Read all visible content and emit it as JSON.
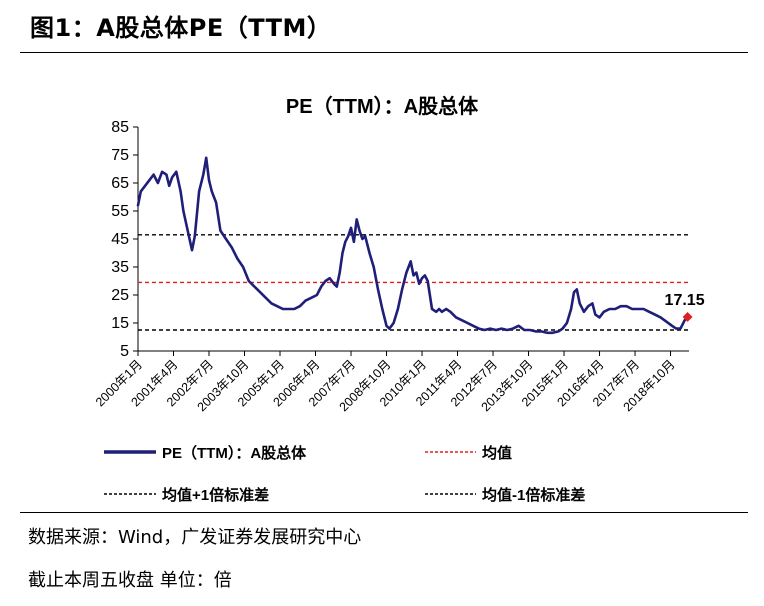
{
  "figure": {
    "title": "图1：A股总体PE（TTM）",
    "source": "数据来源：Wind，广发证券发展研究中心",
    "note": "截止本周五收盘 单位：倍"
  },
  "chart_data": {
    "type": "line",
    "title": "PE（TTM）：A股总体",
    "xlabel": "",
    "ylabel": "",
    "ylim": [
      5,
      85
    ],
    "yticks": [
      5,
      15,
      25,
      35,
      45,
      55,
      65,
      75,
      85
    ],
    "xlim": [
      2000.0,
      2019.4
    ],
    "xticks": [
      {
        "label": "2000年1月",
        "x": 2000.0
      },
      {
        "label": "2001年4月",
        "x": 2001.25
      },
      {
        "label": "2002年7月",
        "x": 2002.5
      },
      {
        "label": "2003年10月",
        "x": 2003.75
      },
      {
        "label": "2005年1月",
        "x": 2005.0
      },
      {
        "label": "2006年4月",
        "x": 2006.25
      },
      {
        "label": "2007年7月",
        "x": 2007.5
      },
      {
        "label": "2008年10月",
        "x": 2008.75
      },
      {
        "label": "2010年1月",
        "x": 2010.0
      },
      {
        "label": "2011年4月",
        "x": 2011.25
      },
      {
        "label": "2012年7月",
        "x": 2012.5
      },
      {
        "label": "2013年10月",
        "x": 2013.75
      },
      {
        "label": "2015年1月",
        "x": 2015.0
      },
      {
        "label": "2016年4月",
        "x": 2016.25
      },
      {
        "label": "2017年7月",
        "x": 2017.5
      },
      {
        "label": "2018年10月",
        "x": 2018.75
      }
    ],
    "grid": false,
    "legend_placement": "bottom",
    "series": [
      {
        "name": "PE（TTM）：A股总体",
        "color": "#1f1f7a",
        "style": "solid",
        "x": [
          2000.0,
          2000.1,
          2000.25,
          2000.4,
          2000.55,
          2000.7,
          2000.85,
          2001.0,
          2001.1,
          2001.2,
          2001.35,
          2001.5,
          2001.6,
          2001.75,
          2001.9,
          2002.0,
          2002.15,
          2002.3,
          2002.4,
          2002.5,
          2002.6,
          2002.75,
          2002.9,
          2003.1,
          2003.3,
          2003.5,
          2003.7,
          2003.9,
          2004.1,
          2004.3,
          2004.5,
          2004.7,
          2004.9,
          2005.1,
          2005.3,
          2005.5,
          2005.7,
          2005.9,
          2006.1,
          2006.3,
          2006.45,
          2006.6,
          2006.75,
          2006.9,
          2007.0,
          2007.1,
          2007.2,
          2007.3,
          2007.4,
          2007.5,
          2007.6,
          2007.7,
          2007.8,
          2007.9,
          2008.0,
          2008.15,
          2008.3,
          2008.45,
          2008.6,
          2008.75,
          2008.85,
          2009.0,
          2009.15,
          2009.3,
          2009.45,
          2009.6,
          2009.7,
          2009.8,
          2009.9,
          2010.0,
          2010.1,
          2010.2,
          2010.35,
          2010.5,
          2010.6,
          2010.7,
          2010.85,
          2011.0,
          2011.2,
          2011.4,
          2011.6,
          2011.8,
          2012.0,
          2012.2,
          2012.4,
          2012.6,
          2012.8,
          2013.0,
          2013.2,
          2013.4,
          2013.6,
          2013.8,
          2014.0,
          2014.2,
          2014.4,
          2014.6,
          2014.8,
          2014.95,
          2015.1,
          2015.25,
          2015.35,
          2015.45,
          2015.55,
          2015.7,
          2015.85,
          2016.0,
          2016.1,
          2016.25,
          2016.4,
          2016.6,
          2016.8,
          2017.0,
          2017.2,
          2017.4,
          2017.6,
          2017.8,
          2018.0,
          2018.2,
          2018.4,
          2018.6,
          2018.8,
          2018.95,
          2019.1,
          2019.25,
          2019.35
        ],
        "y": [
          57,
          62,
          64,
          66,
          68,
          65,
          69,
          68,
          64,
          67,
          69,
          62,
          55,
          48,
          41,
          46,
          62,
          68,
          74,
          66,
          62,
          58,
          48,
          45,
          42,
          38,
          35,
          30,
          28,
          26,
          24,
          22,
          21,
          20,
          20,
          20,
          21,
          23,
          24,
          25,
          28,
          30,
          31,
          29,
          28,
          33,
          40,
          44,
          46,
          49,
          44,
          52,
          48,
          45,
          46,
          40,
          35,
          27,
          20,
          14,
          13,
          15,
          20,
          27,
          33,
          37,
          32,
          33,
          29,
          31,
          32,
          30,
          20,
          19,
          20,
          19,
          20,
          19,
          17,
          16,
          15,
          14,
          13,
          12.5,
          13,
          12.5,
          13,
          12.5,
          13,
          14,
          12.5,
          12.5,
          12,
          12,
          11.5,
          11.5,
          12,
          13,
          15,
          20,
          26,
          27,
          22,
          19,
          21,
          22,
          18,
          17,
          19,
          20,
          20,
          21,
          21,
          20,
          20,
          20,
          19,
          18,
          17,
          15.5,
          14,
          13,
          13,
          16,
          17.15
        ]
      },
      {
        "name": "均值",
        "color": "#e02020",
        "style": "dashed",
        "y": [
          29.5
        ]
      },
      {
        "name": "均值+1倍标准差",
        "color": "#000000",
        "style": "dashed",
        "y": [
          46.5
        ]
      },
      {
        "name": "均值-1倍标准差",
        "color": "#000000",
        "style": "dashed",
        "y": [
          12.5
        ]
      }
    ],
    "annotation": {
      "text": "17.15",
      "x": 2019.35,
      "y": 17.15,
      "marker_color": "#e02020"
    }
  }
}
